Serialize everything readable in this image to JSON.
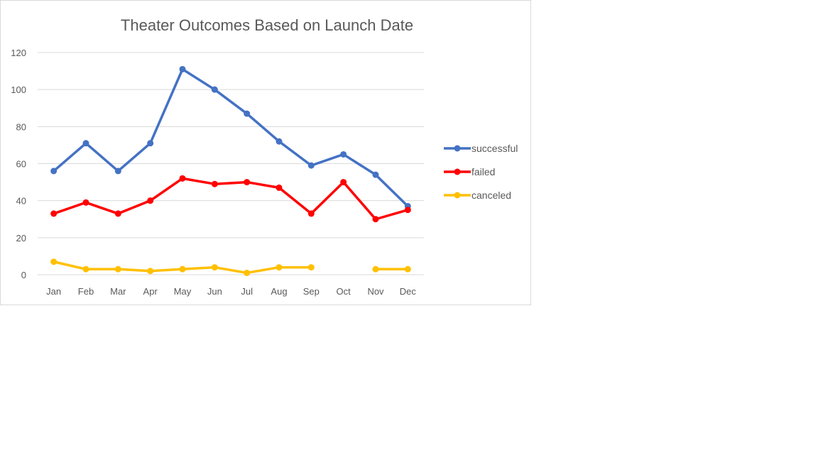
{
  "chart_data": {
    "type": "line",
    "title": "Theater Outcomes Based on Launch Date",
    "xlabel": "",
    "ylabel": "",
    "categories": [
      "Jan",
      "Feb",
      "Mar",
      "Apr",
      "May",
      "Jun",
      "Jul",
      "Aug",
      "Sep",
      "Oct",
      "Nov",
      "Dec"
    ],
    "ylim": [
      0,
      120
    ],
    "yticks": [
      "0",
      "20",
      "40",
      "60",
      "80",
      "100",
      "120"
    ],
    "grid": true,
    "legend_position": "right",
    "series": [
      {
        "name": "successful",
        "color": "#4472C4",
        "values": [
          56,
          71,
          56,
          71,
          111,
          100,
          87,
          72,
          59,
          65,
          54,
          37
        ]
      },
      {
        "name": "failed",
        "color": "#FF0000",
        "values": [
          33,
          39,
          33,
          40,
          52,
          49,
          50,
          47,
          33,
          50,
          30,
          35
        ]
      },
      {
        "name": "canceled",
        "color": "#FFC000",
        "values": [
          7,
          3,
          3,
          2,
          3,
          4,
          1,
          4,
          4,
          null,
          3,
          3
        ]
      }
    ]
  }
}
